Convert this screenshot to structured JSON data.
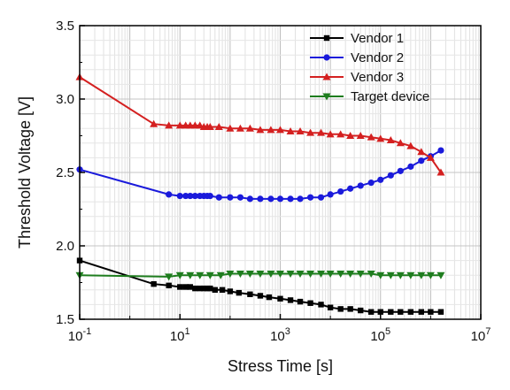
{
  "chart_data": {
    "type": "line",
    "xlabel": "Stress Time [s]",
    "ylabel": "Threshold Voltage [V]",
    "xscale": "log",
    "xlim": [
      0.1,
      10000000
    ],
    "ylim": [
      1.5,
      3.5
    ],
    "x_ticks": [
      {
        "base": "10",
        "exp": "-1",
        "value": 0.1
      },
      {
        "base": "10",
        "exp": "1",
        "value": 10
      },
      {
        "base": "10",
        "exp": "3",
        "value": 1000
      },
      {
        "base": "10",
        "exp": "5",
        "value": 100000
      },
      {
        "base": "10",
        "exp": "7",
        "value": 10000000
      }
    ],
    "y_ticks": [
      "1.5",
      "2.0",
      "2.5",
      "3.0",
      "3.5"
    ],
    "grid": true,
    "legend_position": "top-right",
    "series": [
      {
        "name": "Vendor 1",
        "color": "#000000",
        "marker": "square",
        "x": [
          0.1,
          3,
          6,
          10,
          13,
          16,
          20,
          25,
          30,
          35,
          40,
          50,
          70,
          100,
          150,
          250,
          400,
          600,
          1000,
          1600,
          2500,
          4000,
          6500,
          10000,
          16000,
          25000,
          40000,
          65000,
          100000,
          160000,
          250000,
          400000,
          650000,
          1000000,
          1600000
        ],
        "y": [
          1.9,
          1.74,
          1.73,
          1.72,
          1.72,
          1.72,
          1.71,
          1.71,
          1.71,
          1.71,
          1.71,
          1.7,
          1.7,
          1.69,
          1.68,
          1.67,
          1.66,
          1.65,
          1.64,
          1.63,
          1.62,
          1.61,
          1.6,
          1.58,
          1.57,
          1.57,
          1.56,
          1.55,
          1.55,
          1.55,
          1.55,
          1.55,
          1.55,
          1.55,
          1.55
        ]
      },
      {
        "name": "Vendor 2",
        "color": "#1a1adb",
        "marker": "circle",
        "x": [
          0.1,
          6,
          10,
          13,
          16,
          20,
          25,
          30,
          35,
          40,
          60,
          100,
          160,
          250,
          400,
          650,
          1000,
          1600,
          2500,
          4000,
          6500,
          10000,
          16000,
          25000,
          40000,
          65000,
          100000,
          160000,
          250000,
          400000,
          650000,
          1000000,
          1600000
        ],
        "y": [
          2.52,
          2.35,
          2.34,
          2.34,
          2.34,
          2.34,
          2.34,
          2.34,
          2.34,
          2.34,
          2.33,
          2.33,
          2.33,
          2.32,
          2.32,
          2.32,
          2.32,
          2.32,
          2.32,
          2.33,
          2.33,
          2.35,
          2.37,
          2.39,
          2.41,
          2.43,
          2.45,
          2.48,
          2.51,
          2.54,
          2.58,
          2.61,
          2.65
        ]
      },
      {
        "name": "Vendor 3",
        "color": "#d42020",
        "marker": "triangle-up",
        "x": [
          0.1,
          3,
          6,
          10,
          13,
          16,
          20,
          25,
          30,
          35,
          40,
          60,
          100,
          160,
          250,
          400,
          650,
          1000,
          1600,
          2500,
          4000,
          6500,
          10000,
          16000,
          25000,
          40000,
          65000,
          100000,
          160000,
          250000,
          400000,
          650000,
          1000000,
          1600000
        ],
        "y": [
          3.15,
          2.83,
          2.82,
          2.82,
          2.82,
          2.82,
          2.82,
          2.82,
          2.81,
          2.81,
          2.81,
          2.81,
          2.8,
          2.8,
          2.8,
          2.79,
          2.79,
          2.79,
          2.78,
          2.78,
          2.77,
          2.77,
          2.76,
          2.76,
          2.75,
          2.75,
          2.74,
          2.73,
          2.72,
          2.7,
          2.68,
          2.64,
          2.6,
          2.5
        ]
      },
      {
        "name": "Target device",
        "color": "#1e7d1e",
        "marker": "triangle-down",
        "x": [
          0.1,
          6,
          10,
          16,
          25,
          40,
          65,
          100,
          160,
          250,
          400,
          650,
          1000,
          1600,
          2500,
          4000,
          6500,
          10000,
          16000,
          25000,
          40000,
          65000,
          100000,
          160000,
          250000,
          400000,
          650000,
          1000000,
          1600000
        ],
        "y": [
          1.8,
          1.79,
          1.8,
          1.8,
          1.8,
          1.8,
          1.8,
          1.81,
          1.81,
          1.81,
          1.81,
          1.81,
          1.81,
          1.81,
          1.81,
          1.81,
          1.81,
          1.81,
          1.81,
          1.81,
          1.81,
          1.81,
          1.8,
          1.8,
          1.8,
          1.8,
          1.8,
          1.8,
          1.8
        ]
      }
    ]
  }
}
